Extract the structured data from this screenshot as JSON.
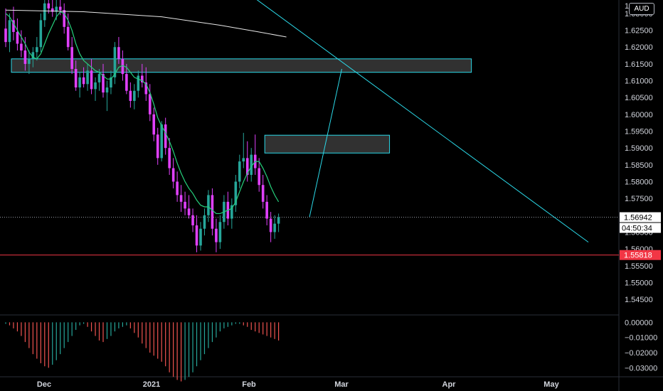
{
  "currency": "AUD",
  "price_axis": {
    "ticks": [
      "1.63000",
      "1.62500",
      "1.62000",
      "1.61500",
      "1.61000",
      "1.60500",
      "1.60000",
      "1.59500",
      "1.59000",
      "1.58500",
      "1.58000",
      "1.57500",
      "1.57000",
      "1.56500",
      "1.56000",
      "1.55500",
      "1.55000",
      "1.54500"
    ],
    "top_partial": "1."
  },
  "osc_axis": {
    "ticks": [
      "0.00000",
      "−0.01000",
      "−0.02000",
      "−0.03000"
    ]
  },
  "time_axis": {
    "labels": [
      "Dec",
      "2021",
      "Feb",
      "Mar",
      "Apr",
      "May"
    ]
  },
  "last_price": {
    "value": "1.56942",
    "countdown": "04:50:34"
  },
  "marked_price": {
    "value": "1.55818",
    "color": "#f23645"
  },
  "colors": {
    "bull": "#26a69a",
    "bear": "#e040fb",
    "ma_fast": "#26d07c",
    "ma_slow": "#e8e8e8",
    "drawing": "#2bd9e8",
    "osc_pos": "#26a69a",
    "osc_neg": "#ef5350"
  },
  "chart_data": {
    "type": "candlestick",
    "title": "",
    "y_range": [
      1.541,
      1.634
    ],
    "candles": [
      {
        "o": 1.6255,
        "h": 1.6315,
        "l": 1.62,
        "c": 1.6215
      },
      {
        "o": 1.6215,
        "h": 1.63,
        "l": 1.6185,
        "c": 1.628
      },
      {
        "o": 1.628,
        "h": 1.632,
        "l": 1.622,
        "c": 1.6245
      },
      {
        "o": 1.6245,
        "h": 1.6285,
        "l": 1.619,
        "c": 1.621
      },
      {
        "o": 1.621,
        "h": 1.625,
        "l": 1.617,
        "c": 1.619
      },
      {
        "o": 1.619,
        "h": 1.623,
        "l": 1.613,
        "c": 1.615
      },
      {
        "o": 1.615,
        "h": 1.619,
        "l": 1.612,
        "c": 1.6165
      },
      {
        "o": 1.6165,
        "h": 1.62,
        "l": 1.614,
        "c": 1.6185
      },
      {
        "o": 1.6185,
        "h": 1.623,
        "l": 1.616,
        "c": 1.62
      },
      {
        "o": 1.62,
        "h": 1.63,
        "l": 1.6185,
        "c": 1.628
      },
      {
        "o": 1.628,
        "h": 1.6345,
        "l": 1.626,
        "c": 1.633
      },
      {
        "o": 1.633,
        "h": 1.636,
        "l": 1.63,
        "c": 1.6315
      },
      {
        "o": 1.6315,
        "h": 1.634,
        "l": 1.629,
        "c": 1.6305
      },
      {
        "o": 1.6305,
        "h": 1.634,
        "l": 1.628,
        "c": 1.632
      },
      {
        "o": 1.632,
        "h": 1.6345,
        "l": 1.6295,
        "c": 1.631
      },
      {
        "o": 1.631,
        "h": 1.633,
        "l": 1.624,
        "c": 1.626
      },
      {
        "o": 1.626,
        "h": 1.63,
        "l": 1.619,
        "c": 1.62
      },
      {
        "o": 1.62,
        "h": 1.623,
        "l": 1.612,
        "c": 1.6135
      },
      {
        "o": 1.6135,
        "h": 1.616,
        "l": 1.607,
        "c": 1.608
      },
      {
        "o": 1.608,
        "h": 1.6125,
        "l": 1.605,
        "c": 1.611
      },
      {
        "o": 1.611,
        "h": 1.614,
        "l": 1.608,
        "c": 1.609
      },
      {
        "o": 1.609,
        "h": 1.615,
        "l": 1.607,
        "c": 1.613
      },
      {
        "o": 1.613,
        "h": 1.6165,
        "l": 1.606,
        "c": 1.6075
      },
      {
        "o": 1.6075,
        "h": 1.611,
        "l": 1.604,
        "c": 1.6095
      },
      {
        "o": 1.6095,
        "h": 1.6135,
        "l": 1.607,
        "c": 1.612
      },
      {
        "o": 1.612,
        "h": 1.615,
        "l": 1.605,
        "c": 1.6065
      },
      {
        "o": 1.6065,
        "h": 1.61,
        "l": 1.601,
        "c": 1.608
      },
      {
        "o": 1.608,
        "h": 1.613,
        "l": 1.606,
        "c": 1.611
      },
      {
        "o": 1.611,
        "h": 1.6215,
        "l": 1.609,
        "c": 1.62
      },
      {
        "o": 1.62,
        "h": 1.623,
        "l": 1.615,
        "c": 1.6165
      },
      {
        "o": 1.6165,
        "h": 1.619,
        "l": 1.61,
        "c": 1.612
      },
      {
        "o": 1.612,
        "h": 1.615,
        "l": 1.606,
        "c": 1.607
      },
      {
        "o": 1.607,
        "h": 1.6095,
        "l": 1.602,
        "c": 1.604
      },
      {
        "o": 1.604,
        "h": 1.609,
        "l": 1.6015,
        "c": 1.607
      },
      {
        "o": 1.607,
        "h": 1.613,
        "l": 1.605,
        "c": 1.6115
      },
      {
        "o": 1.6115,
        "h": 1.615,
        "l": 1.608,
        "c": 1.6095
      },
      {
        "o": 1.6095,
        "h": 1.614,
        "l": 1.604,
        "c": 1.606
      },
      {
        "o": 1.606,
        "h": 1.609,
        "l": 1.598,
        "c": 1.6
      },
      {
        "o": 1.6,
        "h": 1.602,
        "l": 1.592,
        "c": 1.594
      },
      {
        "o": 1.594,
        "h": 1.596,
        "l": 1.585,
        "c": 1.587
      },
      {
        "o": 1.587,
        "h": 1.598,
        "l": 1.586,
        "c": 1.597
      },
      {
        "o": 1.597,
        "h": 1.599,
        "l": 1.588,
        "c": 1.59
      },
      {
        "o": 1.59,
        "h": 1.593,
        "l": 1.582,
        "c": 1.584
      },
      {
        "o": 1.584,
        "h": 1.587,
        "l": 1.578,
        "c": 1.58
      },
      {
        "o": 1.58,
        "h": 1.583,
        "l": 1.574,
        "c": 1.576
      },
      {
        "o": 1.576,
        "h": 1.579,
        "l": 1.571,
        "c": 1.574
      },
      {
        "o": 1.574,
        "h": 1.577,
        "l": 1.57,
        "c": 1.572
      },
      {
        "o": 1.572,
        "h": 1.576,
        "l": 1.569,
        "c": 1.57
      },
      {
        "o": 1.57,
        "h": 1.572,
        "l": 1.565,
        "c": 1.567
      },
      {
        "o": 1.567,
        "h": 1.57,
        "l": 1.559,
        "c": 1.561
      },
      {
        "o": 1.561,
        "h": 1.568,
        "l": 1.5595,
        "c": 1.566
      },
      {
        "o": 1.566,
        "h": 1.572,
        "l": 1.564,
        "c": 1.57
      },
      {
        "o": 1.57,
        "h": 1.5775,
        "l": 1.568,
        "c": 1.576
      },
      {
        "o": 1.576,
        "h": 1.578,
        "l": 1.564,
        "c": 1.566
      },
      {
        "o": 1.566,
        "h": 1.569,
        "l": 1.559,
        "c": 1.562
      },
      {
        "o": 1.562,
        "h": 1.57,
        "l": 1.56,
        "c": 1.568
      },
      {
        "o": 1.568,
        "h": 1.576,
        "l": 1.566,
        "c": 1.574
      },
      {
        "o": 1.574,
        "h": 1.577,
        "l": 1.567,
        "c": 1.569
      },
      {
        "o": 1.569,
        "h": 1.575,
        "l": 1.566,
        "c": 1.573
      },
      {
        "o": 1.573,
        "h": 1.582,
        "l": 1.571,
        "c": 1.58
      },
      {
        "o": 1.58,
        "h": 1.588,
        "l": 1.578,
        "c": 1.586
      },
      {
        "o": 1.586,
        "h": 1.5945,
        "l": 1.584,
        "c": 1.587
      },
      {
        "o": 1.587,
        "h": 1.592,
        "l": 1.58,
        "c": 1.582
      },
      {
        "o": 1.582,
        "h": 1.59,
        "l": 1.58,
        "c": 1.588
      },
      {
        "o": 1.588,
        "h": 1.594,
        "l": 1.582,
        "c": 1.584
      },
      {
        "o": 1.584,
        "h": 1.587,
        "l": 1.577,
        "c": 1.579
      },
      {
        "o": 1.579,
        "h": 1.582,
        "l": 1.572,
        "c": 1.574
      },
      {
        "o": 1.574,
        "h": 1.576,
        "l": 1.567,
        "c": 1.569
      },
      {
        "o": 1.569,
        "h": 1.571,
        "l": 1.562,
        "c": 1.565
      },
      {
        "o": 1.565,
        "h": 1.57,
        "l": 1.563,
        "c": 1.5675
      },
      {
        "o": 1.5675,
        "h": 1.5705,
        "l": 1.565,
        "c": 1.5694
      }
    ],
    "ma_fast": [
      1.63,
      1.629,
      1.627,
      1.625,
      1.623,
      1.621,
      1.6185,
      1.617,
      1.6165,
      1.618,
      1.621,
      1.624,
      1.6265,
      1.629,
      1.6305,
      1.63,
      1.628,
      1.625,
      1.621,
      1.618,
      1.616,
      1.615,
      1.614,
      1.613,
      1.6125,
      1.6115,
      1.6105,
      1.6105,
      1.612,
      1.614,
      1.6145,
      1.614,
      1.6125,
      1.611,
      1.6105,
      1.61,
      1.609,
      1.6065,
      1.603,
      1.599,
      1.5965,
      1.5945,
      1.592,
      1.589,
      1.5855,
      1.5825,
      1.58,
      1.578,
      1.5765,
      1.5745,
      1.573,
      1.5725,
      1.5725,
      1.5715,
      1.5705,
      1.5705,
      1.571,
      1.5715,
      1.572,
      1.574,
      1.577,
      1.58,
      1.5825,
      1.5845,
      1.586,
      1.586,
      1.584,
      1.5815,
      1.5785,
      1.576,
      1.574
    ],
    "ma_slow": [
      {
        "bar": 0,
        "v": 1.631
      },
      {
        "bar": 20,
        "v": 1.6305
      },
      {
        "bar": 40,
        "v": 1.629
      },
      {
        "bar": 55,
        "v": 1.6265
      },
      {
        "bar": 65,
        "v": 1.6245
      },
      {
        "bar": 72,
        "v": 1.623
      }
    ],
    "levels": {
      "marked": 1.55818,
      "last": 1.56942
    },
    "zones": [
      {
        "from_bar": 0,
        "to_bar": 118,
        "top": 1.6165,
        "bottom": 1.6125
      },
      {
        "from_bar": 65,
        "to_bar": 97,
        "top": 1.5938,
        "bottom": 1.5885
      }
    ],
    "projection": [
      {
        "bar": 71,
        "v": 1.5695
      },
      {
        "bar": 78,
        "v": 1.6135
      }
    ],
    "trendline": [
      {
        "bar": 56,
        "v": 1.64
      },
      {
        "bar": 148,
        "v": 1.562
      }
    ],
    "oscillator": [
      -0.001,
      -0.002,
      -0.004,
      -0.006,
      -0.009,
      -0.013,
      -0.017,
      -0.021,
      -0.024,
      -0.027,
      -0.029,
      -0.03,
      -0.028,
      -0.025,
      -0.021,
      -0.017,
      -0.013,
      -0.009,
      -0.005,
      -0.002,
      -0.001,
      -0.003,
      -0.006,
      -0.009,
      -0.012,
      -0.013,
      -0.011,
      -0.009,
      -0.006,
      -0.004,
      -0.003,
      -0.002,
      -0.004,
      -0.007,
      -0.01,
      -0.014,
      -0.017,
      -0.02,
      -0.022,
      -0.024,
      -0.026,
      -0.029,
      -0.033,
      -0.036,
      -0.038,
      -0.039,
      -0.038,
      -0.036,
      -0.033,
      -0.029,
      -0.025,
      -0.021,
      -0.017,
      -0.013,
      -0.01,
      -0.006,
      -0.004,
      -0.003,
      -0.002,
      -0.001,
      -0.001,
      -0.002,
      -0.003,
      -0.005,
      -0.006,
      -0.007,
      -0.008,
      -0.009,
      -0.01,
      -0.011,
      -0.012
    ],
    "osc_range": [
      -0.035,
      0.003
    ]
  }
}
